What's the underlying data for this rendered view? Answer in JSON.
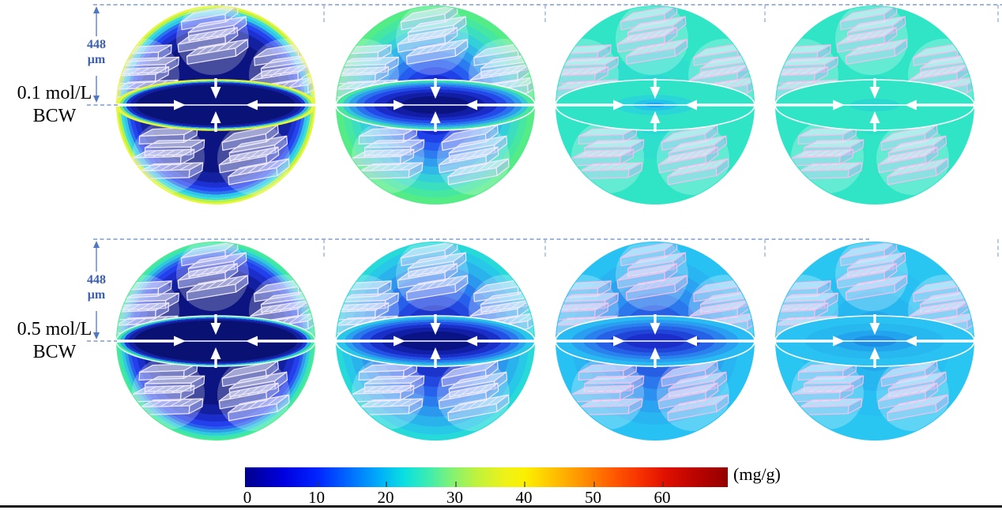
{
  "background": "#ffffff",
  "accent_colors": {
    "annotation_dash": "#9db4dc",
    "annotation_arrow": "#4f78c4",
    "annotation_text": "#3a5fb5",
    "arrow_white": "#ffffff",
    "bottom_rule": "#111111"
  },
  "rows": [
    {
      "label_line1": "0.1 mol/L",
      "label_line2": "BCW",
      "dimension": {
        "value": "448",
        "unit": "μm"
      },
      "spheres": [
        {
          "slab_stroke": "#f1e8ff",
          "lens_stroke": "#e8f542",
          "halo": "rgba(255,255,255,0.24)",
          "sphere_bands": [
            [
              0,
              0.68,
              "#0b1480"
            ],
            [
              0.68,
              0.78,
              "#13209f"
            ],
            [
              0.78,
              0.83,
              "#1d30d2"
            ],
            [
              0.83,
              0.87,
              "#2444f0"
            ],
            [
              0.87,
              0.9,
              "#2b74ee"
            ],
            [
              0.9,
              0.93,
              "#30c6e6"
            ],
            [
              0.93,
              0.955,
              "#3adee0"
            ],
            [
              0.955,
              0.98,
              "#b2f14e"
            ],
            [
              0.98,
              1,
              "#e6f73a"
            ]
          ],
          "lens_bands": [
            [
              0,
              0.8,
              "#091277"
            ],
            [
              0.8,
              0.86,
              "#12209e"
            ],
            [
              0.86,
              0.9,
              "#1c33d4"
            ],
            [
              0.9,
              0.935,
              "#2bb0e0"
            ],
            [
              0.935,
              0.965,
              "#7ae67e"
            ],
            [
              0.965,
              1,
              "#e6f73a"
            ]
          ]
        },
        {
          "slab_stroke": "#f1e8ff",
          "lens_stroke": "#ffffff",
          "halo": "rgba(255,255,255,0.24)",
          "sphere_bands": [
            [
              0,
              0.1,
              "#0a1588"
            ],
            [
              0.1,
              0.2,
              "#101fae"
            ],
            [
              0.2,
              0.3,
              "#172bd2"
            ],
            [
              0.3,
              0.38,
              "#1f41e8"
            ],
            [
              0.38,
              0.46,
              "#275cf0"
            ],
            [
              0.46,
              0.54,
              "#2c7cf0"
            ],
            [
              0.54,
              0.62,
              "#2f9cee"
            ],
            [
              0.62,
              0.7,
              "#31b8e8"
            ],
            [
              0.7,
              0.78,
              "#34d0da"
            ],
            [
              0.78,
              0.86,
              "#3bdfc0"
            ],
            [
              0.86,
              0.93,
              "#46e7a0"
            ],
            [
              0.93,
              1,
              "#53ec86"
            ]
          ],
          "lens_bands": [
            [
              0,
              0.35,
              "#0a1380"
            ],
            [
              0.35,
              0.5,
              "#111da2"
            ],
            [
              0.5,
              0.62,
              "#1a2cc8"
            ],
            [
              0.62,
              0.72,
              "#2349e8"
            ],
            [
              0.72,
              0.8,
              "#2a71f0"
            ],
            [
              0.8,
              0.87,
              "#2f9eea"
            ],
            [
              0.87,
              0.93,
              "#35c8da"
            ],
            [
              0.93,
              1,
              "#48e79c"
            ]
          ]
        },
        {
          "slab_stroke": "#f0c2ec",
          "lens_stroke": "#ffffff",
          "halo": "rgba(255,255,255,0.26)",
          "sphere_bands": [
            [
              0,
              0.12,
              "#27cfe2"
            ],
            [
              0.12,
              0.3,
              "#2ad8d6"
            ],
            [
              0.3,
              0.55,
              "#2ddfcc"
            ],
            [
              0.55,
              1,
              "#2fe5c5"
            ]
          ],
          "lens_bands": [
            [
              0,
              0.1,
              "#1fa6f2"
            ],
            [
              0.1,
              0.22,
              "#24c4e8"
            ],
            [
              0.22,
              0.4,
              "#2ad6d8"
            ],
            [
              0.4,
              1,
              "#2fe4c6"
            ]
          ]
        },
        {
          "slab_stroke": "#f0c2ec",
          "lens_stroke": "#ffffff",
          "halo": "rgba(255,255,255,0.26)",
          "sphere_bands": [
            [
              0,
              0.3,
              "#2cdfc9"
            ],
            [
              0.3,
              1,
              "#2fe5c6"
            ]
          ],
          "lens_bands": [
            [
              0,
              0.25,
              "#2bd8d0"
            ],
            [
              0.25,
              1,
              "#2fe5c6"
            ]
          ]
        }
      ]
    },
    {
      "label_line1": "0.5 mol/L",
      "label_line2": "BCW",
      "dimension": {
        "value": "448",
        "unit": "μm"
      },
      "spheres": [
        {
          "slab_stroke": "#f1e8ff",
          "lens_stroke": "#d9fbee",
          "halo": "rgba(255,255,255,0.24)",
          "sphere_bands": [
            [
              0,
              0.64,
              "#0b1480"
            ],
            [
              0.64,
              0.74,
              "#121f9e"
            ],
            [
              0.74,
              0.81,
              "#1b2ecc"
            ],
            [
              0.81,
              0.86,
              "#2340ec"
            ],
            [
              0.86,
              0.89,
              "#2a60ee"
            ],
            [
              0.89,
              0.92,
              "#2e9ce8"
            ],
            [
              0.92,
              0.95,
              "#30cade"
            ],
            [
              0.95,
              0.98,
              "#3ce4b4"
            ],
            [
              0.98,
              1,
              "#47ec92"
            ]
          ],
          "lens_bands": [
            [
              0,
              0.82,
              "#091173"
            ],
            [
              0.82,
              0.88,
              "#13219e"
            ],
            [
              0.88,
              0.92,
              "#1d36d4"
            ],
            [
              0.92,
              0.96,
              "#2bb2dc"
            ],
            [
              0.96,
              1,
              "#44eaa2"
            ]
          ]
        },
        {
          "slab_stroke": "#f1e8ff",
          "lens_stroke": "#ffffff",
          "halo": "rgba(255,255,255,0.24)",
          "sphere_bands": [
            [
              0,
              0.14,
              "#0c1990"
            ],
            [
              0.14,
              0.26,
              "#1426ae"
            ],
            [
              0.26,
              0.36,
              "#1b35cc"
            ],
            [
              0.36,
              0.46,
              "#2248e0"
            ],
            [
              0.46,
              0.56,
              "#2760ea"
            ],
            [
              0.56,
              0.66,
              "#2a7cee"
            ],
            [
              0.66,
              0.76,
              "#2b98ee"
            ],
            [
              0.76,
              0.86,
              "#2ab2ec"
            ],
            [
              0.86,
              0.94,
              "#28c8e8"
            ],
            [
              0.94,
              1,
              "#26dada"
            ]
          ],
          "lens_bands": [
            [
              0,
              0.38,
              "#0a1383"
            ],
            [
              0.38,
              0.54,
              "#111ea6"
            ],
            [
              0.54,
              0.66,
              "#1a2fc8"
            ],
            [
              0.66,
              0.76,
              "#2250e4"
            ],
            [
              0.76,
              0.84,
              "#2877ec"
            ],
            [
              0.84,
              0.91,
              "#2aa0ee"
            ],
            [
              0.91,
              1,
              "#28c6e8"
            ]
          ]
        },
        {
          "slab_stroke": "#f0c2ec",
          "lens_stroke": "#ffffff",
          "halo": "rgba(255,255,255,0.25)",
          "sphere_bands": [
            [
              0,
              0.12,
              "#1c33cc"
            ],
            [
              0.12,
              0.24,
              "#2146d8"
            ],
            [
              0.24,
              0.36,
              "#265ee4"
            ],
            [
              0.36,
              0.48,
              "#2a78ec"
            ],
            [
              0.48,
              0.6,
              "#2b90f0"
            ],
            [
              0.6,
              0.72,
              "#2aa4f0"
            ],
            [
              0.72,
              0.84,
              "#29b4f2"
            ],
            [
              0.84,
              1,
              "#27c2f3"
            ]
          ],
          "lens_bands": [
            [
              0,
              0.3,
              "#1b2ecc"
            ],
            [
              0.3,
              0.46,
              "#2144d8"
            ],
            [
              0.46,
              0.6,
              "#2660e6"
            ],
            [
              0.6,
              0.72,
              "#2a80ec"
            ],
            [
              0.72,
              0.84,
              "#2a9ef0"
            ],
            [
              0.84,
              1,
              "#28baf2"
            ]
          ]
        },
        {
          "slab_stroke": "#f0c2ec",
          "lens_stroke": "#ffffff",
          "halo": "rgba(255,255,255,0.25)",
          "sphere_bands": [
            [
              0,
              0.15,
              "#1e96ea"
            ],
            [
              0.15,
              0.3,
              "#23a8ee"
            ],
            [
              0.3,
              0.5,
              "#26b6f0"
            ],
            [
              0.5,
              0.75,
              "#28c0f2"
            ],
            [
              0.75,
              1,
              "#2ac6f2"
            ]
          ],
          "lens_bands": [
            [
              0,
              0.22,
              "#1d8ee8"
            ],
            [
              0.22,
              0.42,
              "#23a4ee"
            ],
            [
              0.42,
              0.7,
              "#27b8f0"
            ],
            [
              0.7,
              1,
              "#29c2f2"
            ]
          ]
        }
      ]
    }
  ],
  "colorbar": {
    "ticks": [
      "0",
      "10",
      "20",
      "30",
      "40",
      "50",
      "60"
    ],
    "unit_label": "(mg/g)",
    "gradient_stops": [
      [
        0,
        "#00008c"
      ],
      [
        0.08,
        "#0000e0"
      ],
      [
        0.15,
        "#0024ff"
      ],
      [
        0.22,
        "#0070ff"
      ],
      [
        0.28,
        "#00b0f8"
      ],
      [
        0.33,
        "#0ae0e0"
      ],
      [
        0.38,
        "#3cecb0"
      ],
      [
        0.43,
        "#84f272"
      ],
      [
        0.48,
        "#c0f23c"
      ],
      [
        0.54,
        "#eef218"
      ],
      [
        0.58,
        "#fcf000"
      ],
      [
        0.64,
        "#ffc000"
      ],
      [
        0.7,
        "#ff9000"
      ],
      [
        0.76,
        "#ff5c00"
      ],
      [
        0.82,
        "#f63000"
      ],
      [
        0.87,
        "#e01000"
      ],
      [
        0.93,
        "#bc0400"
      ],
      [
        1,
        "#940000"
      ]
    ]
  },
  "chart_data": {
    "type": "heatmap",
    "rows": [
      "0.1 mol/L BCW",
      "0.5 mol/L BCW"
    ],
    "panels_per_row": 4,
    "particle_diameter": "448 μm",
    "colorbar": {
      "label": "(mg/g)",
      "ticks": [
        0,
        10,
        20,
        30,
        40,
        50,
        60
      ],
      "range": [
        0,
        69
      ],
      "colormap": "jet"
    },
    "description": "Concentration (mg/g) distribution inside spherical particles; four sequential panels per row, color fading from navy (low) toward turquoise/cyan (higher) as sorption proceeds; white arrows point inward at the equatorial lens."
  }
}
